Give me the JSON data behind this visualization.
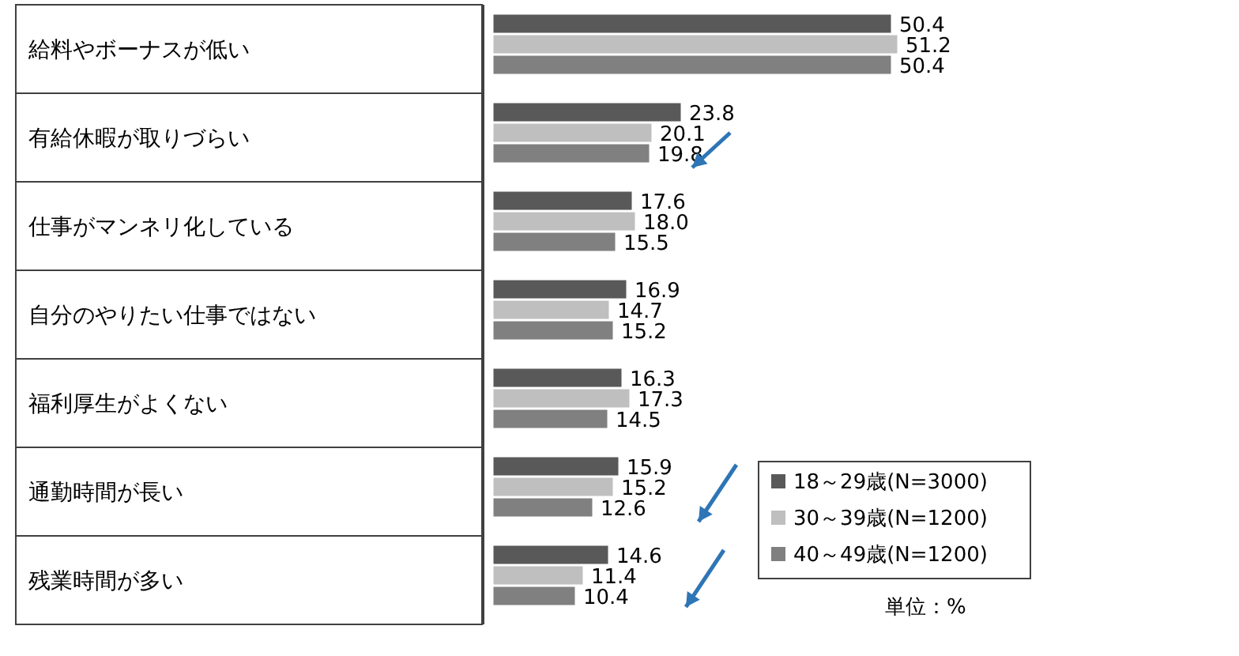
{
  "chart_data": {
    "type": "bar",
    "orientation": "horizontal",
    "categories": [
      "給料やボーナスが低い",
      "有給休暇が取りづらい",
      "仕事がマンネリ化している",
      "自分のやりたい仕事ではない",
      "福利厚生がよくない",
      "通勤時間が長い",
      "残業時間が多い"
    ],
    "series": [
      {
        "name": "18～29歳(N=3000)",
        "color": "#595959",
        "values": [
          50.4,
          23.8,
          17.6,
          16.9,
          16.3,
          15.9,
          14.6
        ],
        "value_labels": [
          "50.4",
          "23.8",
          "17.6",
          "16.9",
          "16.3",
          "15.9",
          "14.6"
        ]
      },
      {
        "name": "30～39歳(N=1200)",
        "color": "#bfbfbf",
        "values": [
          51.2,
          20.1,
          18.0,
          14.7,
          17.3,
          15.2,
          11.4
        ],
        "value_labels": [
          "51.2",
          "20.1",
          "18.0",
          "14.7",
          "17.3",
          "15.2",
          "11.4"
        ]
      },
      {
        "name": "40～49歳(N=1200)",
        "color": "#808080",
        "values": [
          50.4,
          19.8,
          15.5,
          15.2,
          14.5,
          12.6,
          10.4
        ],
        "value_labels": [
          "50.4",
          "19.8",
          "15.5",
          "15.2",
          "14.5",
          "12.6",
          "10.4"
        ]
      }
    ],
    "legend": "bottom right",
    "annotations": [
      "単位：%"
    ]
  }
}
